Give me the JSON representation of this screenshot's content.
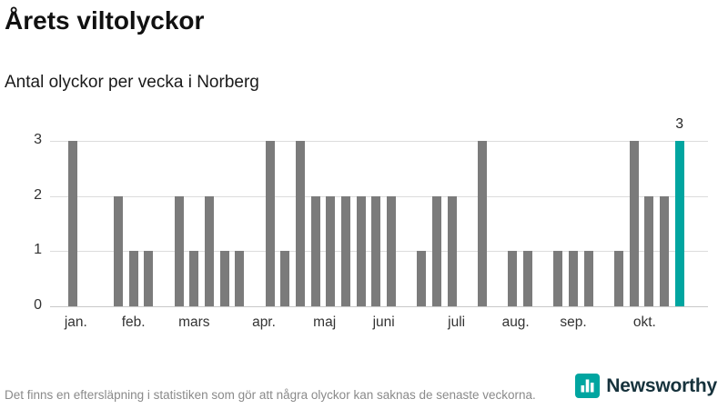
{
  "header": {
    "title": "Årets viltolyckor",
    "subtitle": "Antal olyckor per vecka i Norberg"
  },
  "chart_data": {
    "type": "bar",
    "title": "Årets viltolyckor",
    "subtitle": "Antal olyckor per vecka i Norberg",
    "x_unit": "week",
    "values": [
      0,
      3,
      0,
      0,
      2,
      1,
      1,
      0,
      2,
      1,
      2,
      1,
      1,
      0,
      3,
      1,
      3,
      2,
      2,
      2,
      2,
      2,
      2,
      0,
      1,
      2,
      2,
      0,
      3,
      0,
      1,
      1,
      0,
      1,
      1,
      1,
      0,
      1,
      3,
      2,
      2,
      3
    ],
    "highlight_index": 41,
    "highlight_value_label": "3",
    "yticks": [
      0,
      1,
      2,
      3
    ],
    "ylim": [
      0,
      3
    ],
    "grid": true,
    "legend": false,
    "month_ticks": [
      {
        "label": "jan.",
        "week": 2.2
      },
      {
        "label": "feb.",
        "week": 6.0
      },
      {
        "label": "mars",
        "week": 10.0
      },
      {
        "label": "apr.",
        "week": 14.6
      },
      {
        "label": "maj",
        "week": 18.6
      },
      {
        "label": "juni",
        "week": 22.5
      },
      {
        "label": "juli",
        "week": 27.3
      },
      {
        "label": "aug.",
        "week": 31.2
      },
      {
        "label": "sep.",
        "week": 35.0
      },
      {
        "label": "okt.",
        "week": 39.7
      }
    ],
    "bar_color": "#7b7b7b",
    "highlight_color": "#00a5a0",
    "grid_color": "#dcdcdc"
  },
  "footer": {
    "note": "Det finns en eftersläpning i statistiken som gör att några olyckor kan saknas de senaste veckorna.",
    "brand": "Newsworthy",
    "brand_color": "#00a5a0"
  }
}
